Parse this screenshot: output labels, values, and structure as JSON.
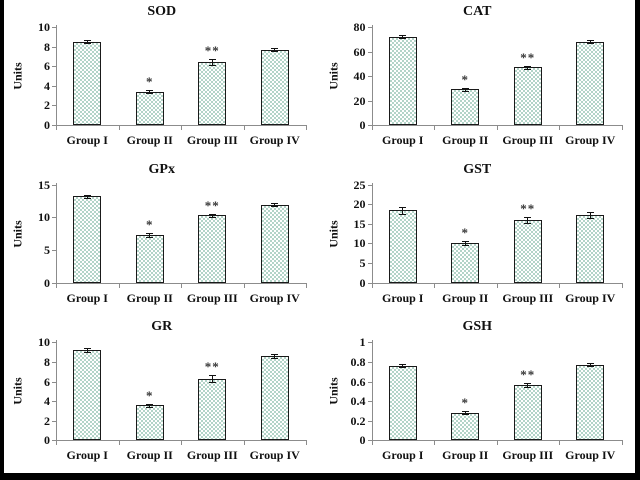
{
  "figure": {
    "background": "#ffffff",
    "frame_border_color": "#000000",
    "layout": "2x3-grid"
  },
  "styles": {
    "bar_fill_color": "#b3d4c8",
    "bar_border_color": "#1a1a1a",
    "axis_color": "#8c8c8c",
    "text_color": "#111111",
    "marker_color": "#333333"
  },
  "significance_markers": {
    "single": "*",
    "double": "**"
  },
  "chart_data": [
    {
      "type": "bar",
      "title": "SOD",
      "xlabel": "",
      "ylabel": "Units",
      "categories": [
        "Group I",
        "Group II",
        "Group III",
        "Group IV"
      ],
      "values": [
        8.5,
        3.4,
        6.4,
        7.7
      ],
      "errors": [
        0.15,
        0.08,
        0.3,
        0.06
      ],
      "annotations": [
        "",
        "*",
        "**",
        ""
      ],
      "ylim": [
        0,
        10
      ],
      "yticks": [
        0,
        2,
        4,
        6,
        8,
        10
      ],
      "grid": false
    },
    {
      "type": "bar",
      "title": "CAT",
      "xlabel": "",
      "ylabel": "Units",
      "categories": [
        "Group I",
        "Group II",
        "Group III",
        "Group IV"
      ],
      "values": [
        72,
        29,
        47,
        68
      ],
      "errors": [
        1,
        0.8,
        1.2,
        0.9
      ],
      "annotations": [
        "",
        "*",
        "**",
        ""
      ],
      "ylim": [
        0,
        80
      ],
      "yticks": [
        0,
        20,
        40,
        60,
        80
      ],
      "grid": false
    },
    {
      "type": "bar",
      "title": "GPx",
      "xlabel": "",
      "ylabel": "Units",
      "categories": [
        "Group I",
        "Group II",
        "Group III",
        "Group IV"
      ],
      "values": [
        13.2,
        7.3,
        10.3,
        11.9
      ],
      "errors": [
        0.12,
        0.25,
        0.2,
        0.1
      ],
      "annotations": [
        "",
        "*",
        "**",
        ""
      ],
      "ylim": [
        0,
        15
      ],
      "yticks": [
        0,
        5,
        10,
        15
      ],
      "grid": false
    },
    {
      "type": "bar",
      "title": "GST",
      "xlabel": "",
      "ylabel": "Units",
      "categories": [
        "Group I",
        "Group II",
        "Group III",
        "Group IV"
      ],
      "values": [
        18.5,
        10,
        16,
        17.2
      ],
      "errors": [
        0.9,
        0.5,
        0.7,
        0.7
      ],
      "annotations": [
        "",
        "*",
        "**",
        ""
      ],
      "ylim": [
        0,
        25
      ],
      "yticks": [
        0,
        5,
        10,
        15,
        20,
        25
      ],
      "grid": false
    },
    {
      "type": "bar",
      "title": "GR",
      "xlabel": "",
      "ylabel": "Units",
      "categories": [
        "Group I",
        "Group II",
        "Group III",
        "Group IV"
      ],
      "values": [
        9.2,
        3.6,
        6.3,
        8.6
      ],
      "errors": [
        0.2,
        0.08,
        0.35,
        0.2
      ],
      "annotations": [
        "",
        "*",
        "**",
        ""
      ],
      "ylim": [
        0,
        10
      ],
      "yticks": [
        0,
        2,
        4,
        6,
        8,
        10
      ],
      "grid": false
    },
    {
      "type": "bar",
      "title": "GSH",
      "xlabel": "",
      "ylabel": "Units",
      "categories": [
        "Group I",
        "Group II",
        "Group III",
        "Group IV"
      ],
      "values": [
        0.76,
        0.28,
        0.56,
        0.77
      ],
      "errors": [
        0.01,
        0.01,
        0.02,
        0.015
      ],
      "annotations": [
        "",
        "*",
        "**",
        ""
      ],
      "ylim": [
        0,
        1
      ],
      "yticks": [
        0,
        0.2,
        0.4,
        0.6,
        0.8,
        1
      ],
      "grid": false
    }
  ]
}
